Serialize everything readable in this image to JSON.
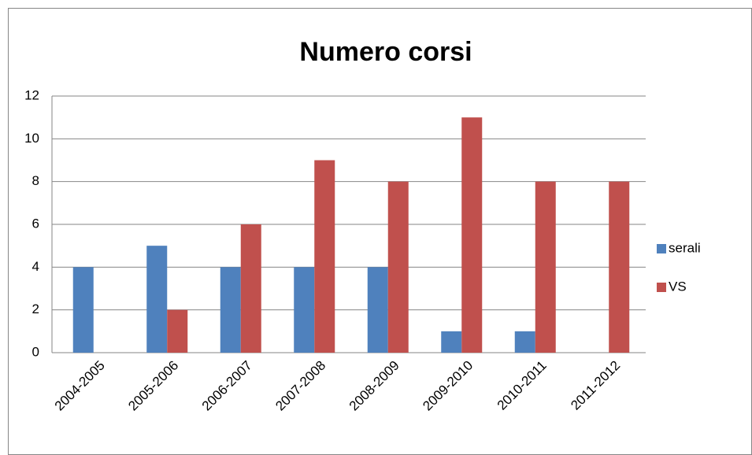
{
  "chart_data": {
    "type": "bar",
    "title": "Numero corsi",
    "categories": [
      "2004-2005",
      "2005-2006",
      "2006-2007",
      "2007-2008",
      "2008-2009",
      "2009-2010",
      "2010-2011",
      "2011-2012"
    ],
    "series": [
      {
        "name": "serali",
        "color": "#4f81bd",
        "values": [
          4,
          5,
          4,
          4,
          4,
          1,
          1,
          0
        ]
      },
      {
        "name": "VS",
        "color": "#c0504d",
        "values": [
          0,
          2,
          6,
          9,
          8,
          11,
          8,
          8
        ]
      }
    ],
    "ylim": [
      0,
      12
    ],
    "yticks": [
      0,
      2,
      4,
      6,
      8,
      10,
      12
    ],
    "grid": true,
    "legend": "right"
  }
}
